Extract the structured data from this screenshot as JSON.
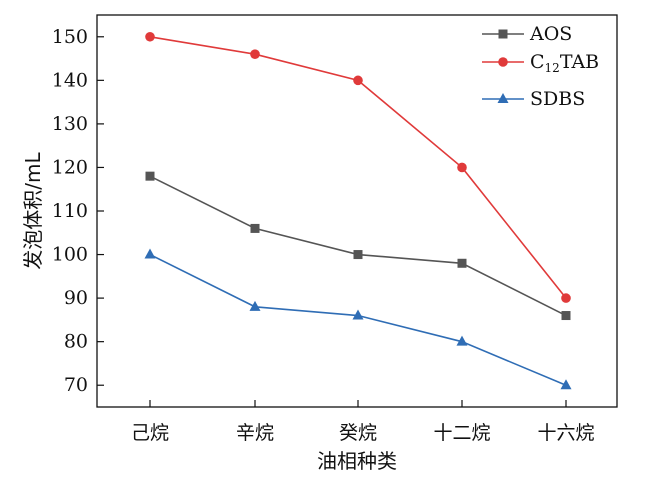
{
  "chart_data": {
    "type": "line",
    "categories": [
      "己烷",
      "辛烷",
      "癸烷",
      "十二烷",
      "十六烷"
    ],
    "xlabel": "油相种类",
    "ylabel": "发泡体积/mL",
    "ylim": [
      65,
      155
    ],
    "yticks": [
      70,
      80,
      90,
      100,
      110,
      120,
      130,
      140,
      150
    ],
    "grid": false,
    "legend_position": "top-right",
    "series": [
      {
        "name": "AOS",
        "name_main": "AOS",
        "name_sub": "",
        "name_rest": "",
        "color": "#555555",
        "marker": "square",
        "values": [
          118,
          106,
          100,
          98,
          86
        ]
      },
      {
        "name": "C12TAB",
        "name_main": "C",
        "name_sub": "12",
        "name_rest": "TAB",
        "color": "#e03a3a",
        "marker": "circle",
        "values": [
          150,
          146,
          140,
          120,
          90
        ]
      },
      {
        "name": "SDBS",
        "name_main": "SDBS",
        "name_sub": "",
        "name_rest": "",
        "color": "#2f6db5",
        "marker": "triangle",
        "values": [
          100,
          88,
          86,
          80,
          70
        ]
      }
    ]
  }
}
